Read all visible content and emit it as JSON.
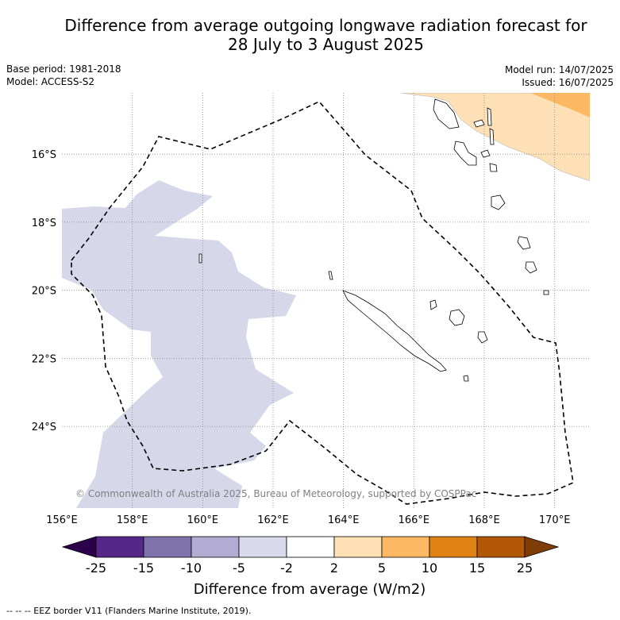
{
  "title": {
    "line1": "Difference from average outgoing longwave radiation forecast for",
    "line2": "28 July to 3 August 2025"
  },
  "meta_left": {
    "base_period": "Base period: 1981-2018",
    "model": "Model: ACCESS-S2"
  },
  "meta_right": {
    "model_run": "Model run: 14/07/2025",
    "issued": "Issued: 16/07/2025"
  },
  "map": {
    "lon_range": [
      156,
      171
    ],
    "lat_range": [
      -26.4,
      -14.2
    ],
    "lon_ticks": [
      "156°E",
      "158°E",
      "160°E",
      "162°E",
      "164°E",
      "166°E",
      "168°E",
      "170°E"
    ],
    "lat_ticks": [
      "16°S",
      "18°S",
      "20°S",
      "22°S",
      "24°S"
    ],
    "copyright": "© Commonwealth of Australia 2025, Bureau of Meteorology, supported by COSPPac",
    "colors": {
      "neg_light": "#d6d7e9",
      "pos_light": "#fde0b6",
      "pos_mid": "#fdb863",
      "eez": "#000000"
    }
  },
  "colorbar": {
    "ticks": [
      "-25",
      "-15",
      "-10",
      "-5",
      "-2",
      "2",
      "5",
      "10",
      "15",
      "25"
    ],
    "colors": [
      "#2d004b",
      "#542788",
      "#8073ac",
      "#b2abd2",
      "#d8daeb",
      "#ffffff",
      "#fee0b6",
      "#fdb863",
      "#e08214",
      "#b35806",
      "#7f3b08"
    ],
    "label": "Difference from average (W/m2)"
  },
  "footer": "--  --  -- EEZ border V11 (Flanders Marine Institute, 2019)."
}
